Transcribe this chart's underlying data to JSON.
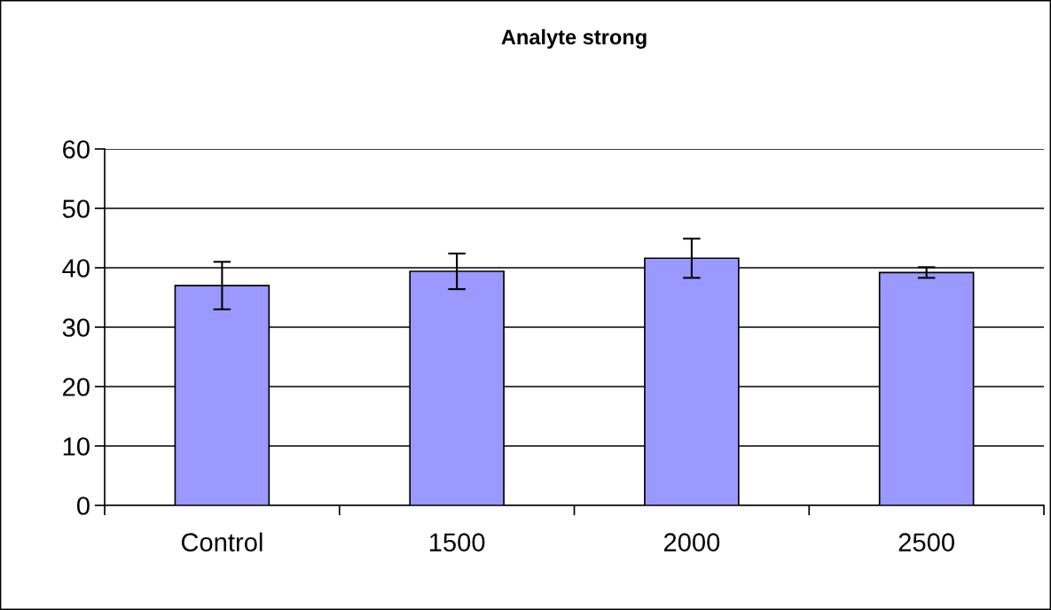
{
  "chart_data": {
    "type": "bar",
    "title": "Analyte strong",
    "categories": [
      "Control",
      "1500",
      "2000",
      "2500"
    ],
    "values": [
      37.0,
      39.4,
      41.6,
      39.2
    ],
    "errors": [
      4.0,
      3.0,
      3.3,
      0.9
    ],
    "color": "#9999ff",
    "ylim": [
      0,
      60
    ],
    "yticks": [
      0,
      10,
      20,
      30,
      40,
      50,
      60
    ],
    "grid": "y"
  }
}
